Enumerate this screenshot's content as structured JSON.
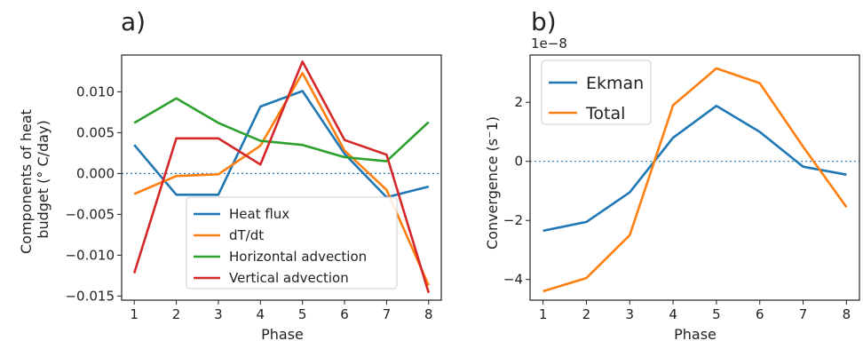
{
  "chart_data": [
    {
      "type": "line",
      "panel_label": "a)",
      "xlabel": "Phase",
      "ylabel": "Components of heat budget (° C/day)",
      "x": [
        1,
        2,
        3,
        4,
        5,
        6,
        7,
        8
      ],
      "xticks": [
        "1",
        "2",
        "3",
        "4",
        "5",
        "6",
        "7",
        "8"
      ],
      "yticks": [
        "−0.015",
        "−0.010",
        "−0.005",
        "0.000",
        "0.005",
        "0.010"
      ],
      "ylim": [
        -0.0155,
        0.0145
      ],
      "xlim": [
        0.7,
        8.3
      ],
      "zero_line": true,
      "legend_position": "lower-center",
      "series": [
        {
          "name": "Heat flux",
          "color": "#1f77b4",
          "values": [
            0.0035,
            -0.0026,
            -0.0026,
            0.0082,
            0.0101,
            0.0024,
            -0.0029,
            -0.0016
          ]
        },
        {
          "name": "dT/dt",
          "color": "#ff7f0e",
          "values": [
            -0.0025,
            -0.0003,
            -0.0001,
            0.0034,
            0.0123,
            0.0028,
            -0.002,
            -0.0137
          ]
        },
        {
          "name": "Horizontal advection",
          "color": "#2ca02c",
          "values": [
            0.0062,
            0.0092,
            0.0062,
            0.004,
            0.0035,
            0.002,
            0.0015,
            0.0063
          ]
        },
        {
          "name": "Vertical advection",
          "color": "#d62728",
          "values": [
            -0.0122,
            0.0043,
            0.0043,
            0.0011,
            0.0137,
            0.0041,
            0.0023,
            -0.0146
          ]
        }
      ]
    },
    {
      "type": "line",
      "panel_label": "b)",
      "offset_text": "1e−8",
      "xlabel": "Phase",
      "ylabel": "Convergence (s⁻1)",
      "x": [
        1,
        2,
        3,
        4,
        5,
        6,
        7,
        8
      ],
      "xticks": [
        "1",
        "2",
        "3",
        "4",
        "5",
        "6",
        "7",
        "8"
      ],
      "yticks": [
        "−4",
        "−2",
        "0",
        "2"
      ],
      "ylim": [
        -4.7,
        3.6
      ],
      "xlim": [
        0.7,
        8.3
      ],
      "zero_line": true,
      "legend_position": "upper-left",
      "series": [
        {
          "name": "Ekman",
          "color": "#1f77b4",
          "values": [
            -2.35,
            -2.05,
            -1.05,
            0.8,
            1.88,
            1.0,
            -0.18,
            -0.45
          ]
        },
        {
          "name": "Total",
          "color": "#ff7f0e",
          "values": [
            -4.4,
            -3.95,
            -2.5,
            1.9,
            3.15,
            2.65,
            0.5,
            -1.55
          ]
        }
      ]
    }
  ]
}
